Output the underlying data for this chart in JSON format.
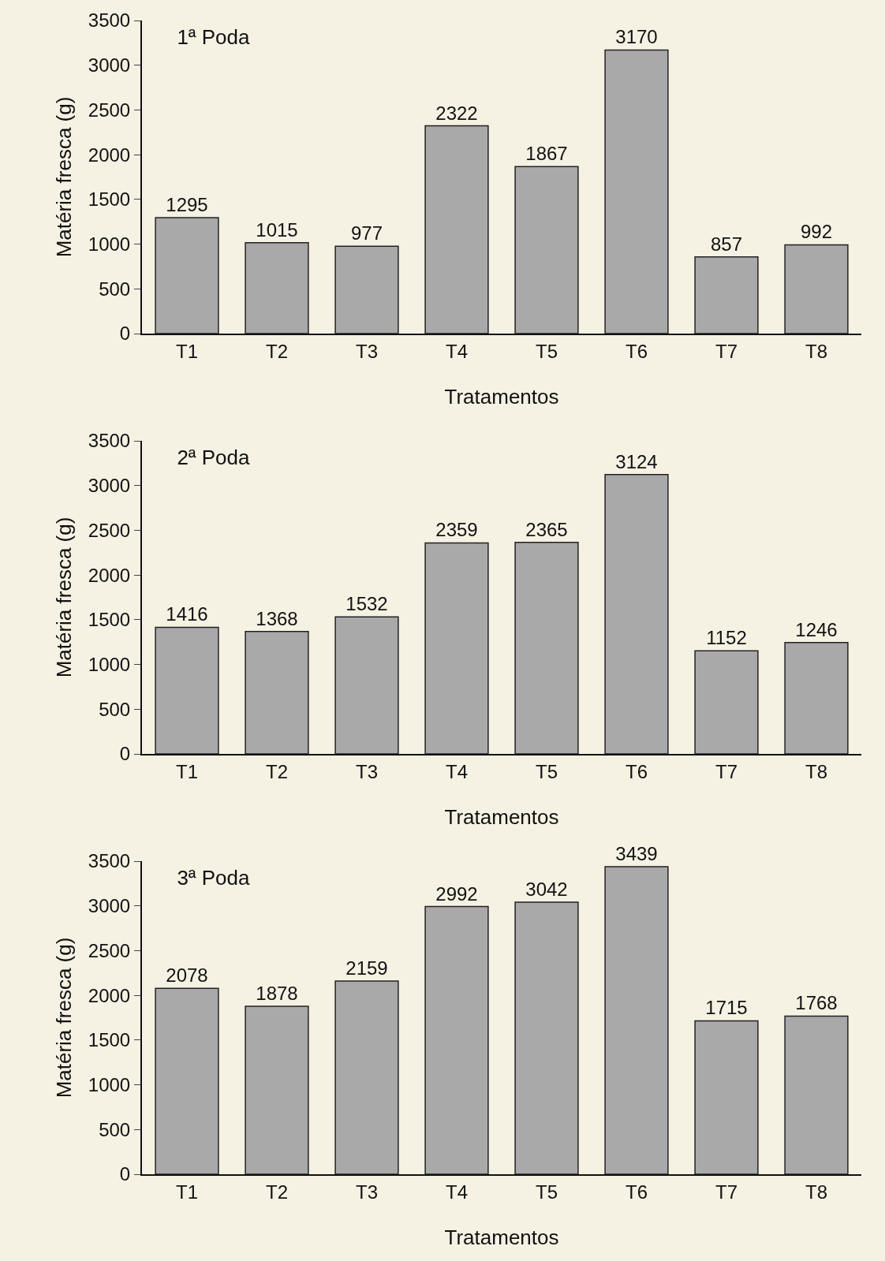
{
  "chart_data": [
    {
      "type": "bar",
      "title": "1ª Poda",
      "xlabel": "Tratamentos",
      "ylabel": "Matéria fresca (g)",
      "categories": [
        "T1",
        "T2",
        "T3",
        "T4",
        "T5",
        "T6",
        "T7",
        "T8"
      ],
      "values": [
        1295,
        1015,
        977,
        2322,
        1867,
        3170,
        857,
        992
      ],
      "color": "#a9a9a9",
      "ylim": [
        0,
        3500
      ],
      "yticks": [
        0,
        500,
        1000,
        1500,
        2000,
        2500,
        3000,
        3500
      ],
      "grid": false,
      "data_labels": true
    },
    {
      "type": "bar",
      "title": "2ª Poda",
      "xlabel": "Tratamentos",
      "ylabel": "Matéria fresca (g)",
      "categories": [
        "T1",
        "T2",
        "T3",
        "T4",
        "T5",
        "T6",
        "T7",
        "T8"
      ],
      "values": [
        1416,
        1368,
        1532,
        2359,
        2365,
        3124,
        1152,
        1246
      ],
      "color": "#a9a9a9",
      "ylim": [
        0,
        3500
      ],
      "yticks": [
        0,
        500,
        1000,
        1500,
        2000,
        2500,
        3000,
        3500
      ],
      "grid": false,
      "data_labels": true
    },
    {
      "type": "bar",
      "title": "3ª Poda",
      "xlabel": "Tratamentos",
      "ylabel": "Matéria fresca (g)",
      "categories": [
        "T1",
        "T2",
        "T3",
        "T4",
        "T5",
        "T6",
        "T7",
        "T8"
      ],
      "values": [
        2078,
        1878,
        2159,
        2992,
        3042,
        3439,
        1715,
        1768
      ],
      "color": "#a9a9a9",
      "ylim": [
        0,
        3500
      ],
      "yticks": [
        0,
        500,
        1000,
        1500,
        2000,
        2500,
        3000,
        3500
      ],
      "grid": false,
      "data_labels": true
    }
  ]
}
